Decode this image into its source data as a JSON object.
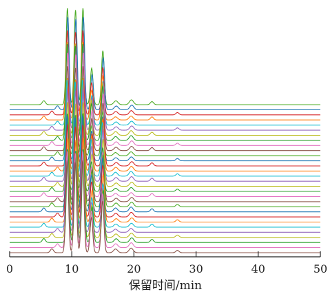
{
  "chart_data": {
    "type": "line",
    "title": "",
    "xlabel": "保留时间/min",
    "ylabel": "",
    "xlim": [
      0,
      50
    ],
    "xticks": [
      "0",
      "10",
      "20",
      "30",
      "40",
      "50"
    ],
    "xtick_values": [
      0,
      10,
      20,
      30,
      40,
      50
    ],
    "grid": false,
    "legend": "none",
    "layout": "stacked-offset chromatograms",
    "trace_count": 30,
    "colors": [
      "#4dac26",
      "#1f77b4",
      "#d62728",
      "#ff7f0e",
      "#17becf",
      "#9467bd",
      "#bcbd22",
      "#2ca02c",
      "#e377c2",
      "#8c564b"
    ],
    "peaks": [
      {
        "rt": 9.3,
        "height": 1.0,
        "label": ""
      },
      {
        "rt": 10.6,
        "height": 0.98,
        "label": ""
      },
      {
        "rt": 11.8,
        "height": 1.0,
        "label": ""
      },
      {
        "rt": 13.2,
        "height": 0.38,
        "label": ""
      },
      {
        "rt": 15.0,
        "height": 0.56,
        "label": ""
      },
      {
        "rt": 17.1,
        "height": 0.04,
        "label": ""
      },
      {
        "rt": 19.6,
        "height": 0.05,
        "label": ""
      }
    ],
    "minor_peaks": [
      {
        "rt": 5.5,
        "height": 0.01
      },
      {
        "rt": 6.8,
        "height": 0.01
      },
      {
        "rt": 7.7,
        "height": 0.01
      },
      {
        "rt": 22.9,
        "height": 0.008
      },
      {
        "rt": 27.0,
        "height": 0.006
      }
    ]
  }
}
